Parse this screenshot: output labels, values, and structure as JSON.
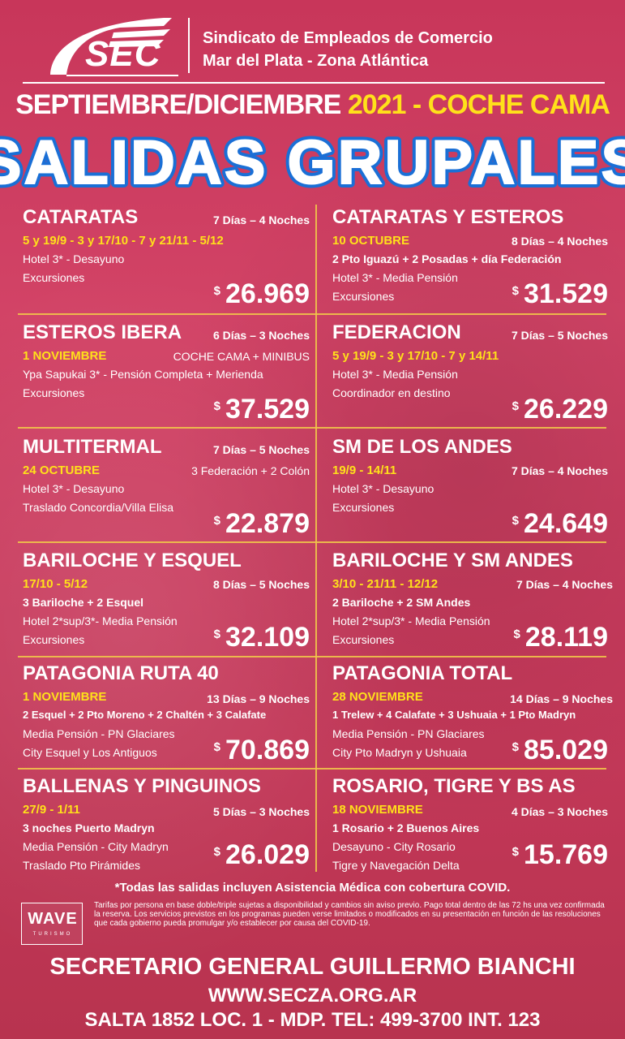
{
  "header": {
    "logo_text": "SEC",
    "org_line1": "Sindicato de Empleados de Comercio",
    "org_line2": "Mar del Plata - Zona Atlántica"
  },
  "period": {
    "part1": "SEPTIEMBRE/DICIEMBRE ",
    "part2": "2021 - COCHE CAMA"
  },
  "title": "SALIDAS GRUPALES",
  "currency_symbol": "$",
  "trips": [
    {
      "name": "CATARATAS",
      "duration": "7 Días – 4 Noches",
      "date": "5 y 19/9 - 3 y 17/10 - 7 y 21/11 - 5/12",
      "extra": "",
      "row1": "Hotel 3* - Desayuno",
      "row2": "Excursiones",
      "row3": "",
      "price": "26.969"
    },
    {
      "name": "CATARATAS Y ESTEROS",
      "duration": "8 Días – 4 Noches",
      "date": "10 OCTUBRE",
      "extra": "",
      "row1": "2 Pto Iguazú + 2 Posadas + día Federación",
      "row2": "Hotel  3* - Media Pensión",
      "row3": "Excursiones",
      "price": "31.529"
    },
    {
      "name": "ESTEROS IBERA",
      "duration": "6 Días – 3 Noches",
      "date": "1 NOVIEMBRE",
      "extra": "COCHE CAMA + MINIBUS",
      "row1": "Ypa Sapukai 3* - Pensión Completa + Merienda",
      "row2": "Excursiones",
      "row3": "",
      "price": "37.529"
    },
    {
      "name": "FEDERACION",
      "duration": "7 Días – 5 Noches",
      "date": "5 y 19/9 - 3 y 17/10 - 7 y 14/11",
      "extra": "",
      "row1": "Hotel 3* - Media Pensión",
      "row2": "Coordinador en destino",
      "row3": "",
      "price": "26.229"
    },
    {
      "name": "MULTITERMAL",
      "duration": "7 Días – 5 Noches",
      "date": "24 OCTUBRE",
      "extra": "3 Federación + 2 Colón",
      "row1": "Hotel 3* - Desayuno",
      "row2": "Traslado Concordia/Villa Elisa",
      "row3": "",
      "price": "22.879"
    },
    {
      "name": "SM DE LOS ANDES",
      "duration": "7 Días – 4 Noches",
      "date": "19/9 - 14/11",
      "extra": "",
      "row1": "Hotel  3* - Desayuno",
      "row2": "Excursiones",
      "row3": "",
      "price": "24.649"
    },
    {
      "name": "BARILOCHE Y ESQUEL",
      "duration": "8 Días – 5 Noches",
      "date": "17/10 - 5/12",
      "extra": "",
      "row1": "3 Bariloche + 2 Esquel",
      "row2": "Hotel 2*sup/3*- Media Pensión",
      "row3": "Excursiones",
      "price": "32.109"
    },
    {
      "name": "BARILOCHE Y SM ANDES",
      "duration": "7 Días – 4 Noches",
      "date": "3/10 - 21/11 - 12/12",
      "extra": "",
      "row1": "2 Bariloche + 2 SM Andes",
      "row2": "Hotel 2*sup/3* - Media Pensión",
      "row3": "Excursiones",
      "price": "28.119"
    },
    {
      "name": "PATAGONIA RUTA 40",
      "duration": "13 Días – 9 Noches",
      "date": "1 NOVIEMBRE",
      "extra": "",
      "row1": "2 Esquel + 2 Pto Moreno +  2 Chaltén + 3 Calafate",
      "row2": "Media Pensión - PN Glaciares",
      "row3": "City Esquel y  Los Antiguos",
      "price": "70.869"
    },
    {
      "name": "PATAGONIA TOTAL",
      "duration": "14 Días – 9 Noches",
      "date": "28 NOVIEMBRE",
      "extra": "",
      "row1": "1 Trelew + 4 Calafate + 3 Ushuaia + 1 Pto Madryn",
      "row2": "Media Pensión - PN Glaciares",
      "row3": "City Pto Madryn y Ushuaia",
      "price": "85.029"
    },
    {
      "name": "BALLENAS Y PINGUINOS",
      "duration": "5 Días – 3 Noches",
      "date": "27/9 - 1/11",
      "extra": "",
      "row1": "3 noches Puerto Madryn",
      "row2": "Media Pensión - City Madryn",
      "row3": "Traslado Pto Pirámides",
      "price": "26.029"
    },
    {
      "name": "ROSARIO, TIGRE Y BS AS",
      "duration": "4 Días – 3 Noches",
      "date": "18 NOVIEMBRE",
      "extra": "",
      "row1": "1 Rosario + 2 Buenos Aires",
      "row2": "Desayuno - City Rosario",
      "row3": "Tigre y Navegación Delta",
      "price": "15.769"
    }
  ],
  "footer": {
    "covid_note": "*Todas las salidas incluyen Asistencia Médica con cobertura COVID.",
    "wave_logo": "WAVE",
    "wave_sub": "TURISMO",
    "disclaimer": "Tarifas por persona en base doble/triple sujetas a disponibilidad y cambios sin aviso previo. Pago total dentro de las 72 hs una vez confirmada la reserva. Los servicios previstos en los programas pueden verse limitados o modificados en su presentación en función de las resoluciones que cada gobierno pueda promulgar y/o establecer por causa del COVID-19.",
    "secretary": "SECRETARIO GENERAL GUILLERMO BIANCHI",
    "website": "WWW.SECZA.ORG.AR",
    "address": "SALTA 1852 LOC. 1 - MDP. TEL: 499-3700 INT. 123"
  },
  "colors": {
    "background": "#c93a5c",
    "accent_yellow": "#ffe11a",
    "title_fill": "#ffffff",
    "title_outline": "#1a6fd6",
    "divider": "#f0c44a"
  }
}
